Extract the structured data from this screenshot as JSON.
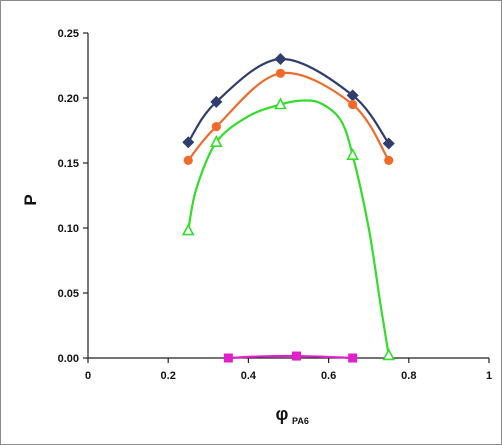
{
  "chart_data": {
    "type": "line",
    "xlabel": "φ",
    "xlabel_sub": "PA6",
    "ylabel": "P",
    "xlim": [
      0,
      1
    ],
    "ylim": [
      0,
      0.25
    ],
    "x_ticks": [
      "0",
      "0.2",
      "0.4",
      "0.6",
      "0.8",
      "1"
    ],
    "x_tick_values": [
      0,
      0.2,
      0.4,
      0.6,
      0.8,
      1
    ],
    "y_ticks": [
      "0.00",
      "0.05",
      "0.10",
      "0.15",
      "0.20",
      "0.25"
    ],
    "y_tick_values": [
      0,
      0.05,
      0.1,
      0.15,
      0.2,
      0.25
    ],
    "grid": false,
    "series": [
      {
        "marker": "diamond",
        "color": "#2f3e6e",
        "x": [
          0.25,
          0.32,
          0.48,
          0.66,
          0.75
        ],
        "y": [
          0.166,
          0.197,
          0.23,
          0.202,
          0.165
        ]
      },
      {
        "marker": "circle",
        "color": "#f26a2a",
        "x": [
          0.25,
          0.32,
          0.48,
          0.66,
          0.75
        ],
        "y": [
          0.152,
          0.178,
          0.219,
          0.195,
          0.152
        ]
      },
      {
        "marker": "triangle",
        "color": "#33dd2a",
        "x": [
          0.25,
          0.32,
          0.48,
          0.66,
          0.75
        ],
        "y": [
          0.098,
          0.166,
          0.195,
          0.156,
          0.002
        ],
        "curve": [
          [
            0.25,
            0.098
          ],
          [
            0.27,
            0.13
          ],
          [
            0.32,
            0.166
          ],
          [
            0.4,
            0.186
          ],
          [
            0.48,
            0.195
          ],
          [
            0.53,
            0.198
          ],
          [
            0.58,
            0.196
          ],
          [
            0.63,
            0.183
          ],
          [
            0.66,
            0.156
          ],
          [
            0.7,
            0.1
          ],
          [
            0.73,
            0.04
          ],
          [
            0.75,
            0.002
          ]
        ]
      },
      {
        "marker": "square",
        "color": "#e020c8",
        "x": [
          0.35,
          0.52,
          0.66
        ],
        "y": [
          0.0,
          0.0015,
          0.0
        ],
        "curve": [
          [
            0.35,
            0.0
          ],
          [
            0.43,
            0.0012
          ],
          [
            0.52,
            0.0015
          ],
          [
            0.6,
            0.0008
          ],
          [
            0.66,
            0.0
          ]
        ]
      }
    ]
  }
}
